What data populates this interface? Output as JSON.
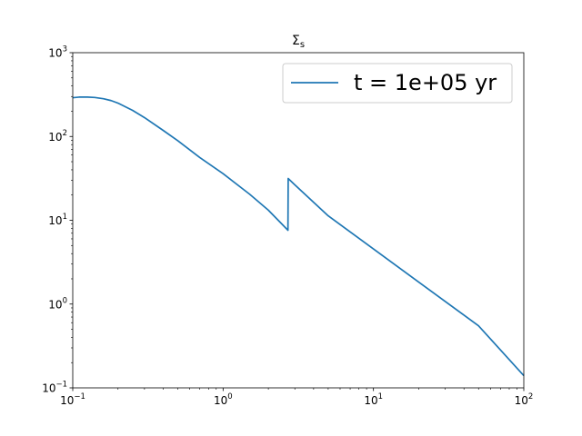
{
  "chart_data": {
    "type": "line",
    "title": "Σs",
    "title_main": "Σ",
    "title_sub": "s",
    "xlabel": "",
    "ylabel": "",
    "xscale": "log",
    "yscale": "log",
    "xlim": [
      0.1,
      100
    ],
    "ylim": [
      0.1,
      1000
    ],
    "grid": false,
    "legend_position": "upper right",
    "x_ticks": [
      {
        "value": 0.1,
        "base": "10",
        "exp": "−1"
      },
      {
        "value": 1,
        "base": "10",
        "exp": "0"
      },
      {
        "value": 10,
        "base": "10",
        "exp": "1"
      },
      {
        "value": 100,
        "base": "10",
        "exp": "2"
      }
    ],
    "y_ticks": [
      {
        "value": 0.1,
        "base": "10",
        "exp": "−1"
      },
      {
        "value": 1,
        "base": "10",
        "exp": "0"
      },
      {
        "value": 10,
        "base": "10",
        "exp": "1"
      },
      {
        "value": 100,
        "base": "10",
        "exp": "2"
      },
      {
        "value": 1000,
        "base": "10",
        "exp": "3"
      }
    ],
    "series": [
      {
        "name": "t = 1e+05 yr",
        "color": "#1f77b4",
        "x": [
          0.1,
          0.11,
          0.125,
          0.14,
          0.16,
          0.18,
          0.2,
          0.25,
          0.3,
          0.4,
          0.5,
          0.7,
          1.0,
          1.5,
          2.0,
          2.7,
          2.71,
          3.0,
          5.0,
          10,
          20,
          50,
          100
        ],
        "y": [
          290,
          295,
          295,
          292,
          282,
          268,
          250,
          205,
          168,
          118,
          89,
          56,
          36,
          20.5,
          13.2,
          7.6,
          31.5,
          26.5,
          11.3,
          4.55,
          1.83,
          0.55,
          0.14
        ]
      }
    ]
  }
}
